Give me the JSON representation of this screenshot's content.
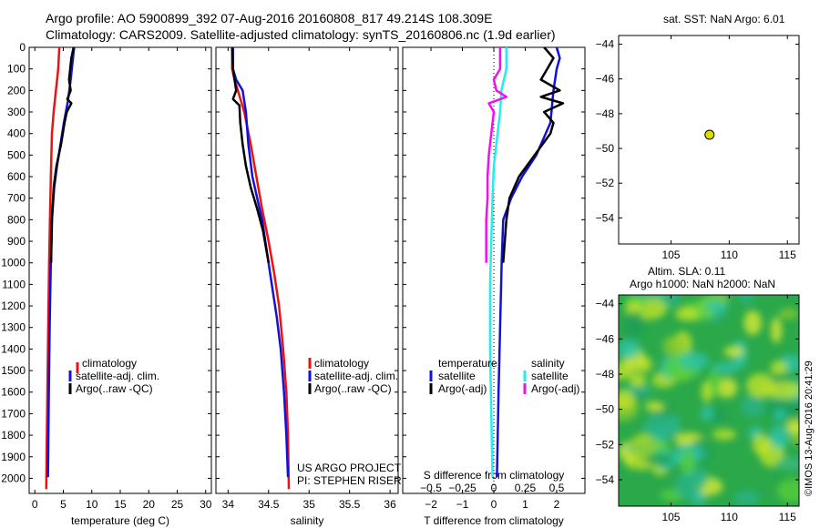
{
  "title_line1": "Argo profile: AO 5900899_392 07-Aug-2016 20160808_817 49.214S 108.309E",
  "title_line2": "Climatology: CARS2009. Satellite-adjusted climatology: synTS_20160806.nc (1.9d earlier)",
  "depth_ticks": [
    "0",
    "100",
    "200",
    "300",
    "400",
    "500",
    "600",
    "700",
    "800",
    "900",
    "1000",
    "1100",
    "1200",
    "1300",
    "1400",
    "1500",
    "1600",
    "1700",
    "1800",
    "1900",
    "2000"
  ],
  "project_text": [
    "US ARGO PROJECT",
    "PI: STEPHEN RISER"
  ],
  "legend_profiles": [
    "climatology",
    "satellite-adj. clim.",
    "Argo(..raw -QC)"
  ],
  "legend_diff": {
    "temperature_header": "temperature",
    "salinity_header": "salinity",
    "t_satellite": "satellite",
    "t_argo": "Argo(-adj)",
    "s_satellite": "satellite",
    "s_argo": "Argo(-adj)"
  },
  "sst_title": "sat. SST: NaN Argo: 6.01",
  "sla_title1": "Altim. SLA: 0.11",
  "sla_title2": "Argo h1000: NaN h2000: NaN",
  "credit": "©IMOS 13-Aug-2016 20:41:29",
  "colors": {
    "red": "#ee1111",
    "blue": "#1111dd",
    "black": "#000000",
    "cyan": "#22eeee",
    "magenta": "#ee11ee",
    "yellow": "#dddd00"
  },
  "chart_data": [
    {
      "type": "line",
      "xlabel": "temperature (deg C)",
      "xlim": [
        -1,
        31
      ],
      "ylim": [
        2070,
        0
      ],
      "xticks": [
        0,
        5,
        10,
        15,
        20,
        25,
        30
      ],
      "series": [
        {
          "name": "climatology",
          "color": "red",
          "points": [
            [
              4.3,
              0
            ],
            [
              4.1,
              100
            ],
            [
              3.7,
              200
            ],
            [
              3.3,
              300
            ],
            [
              3.0,
              400
            ],
            [
              2.9,
              500
            ],
            [
              2.8,
              600
            ],
            [
              2.65,
              800
            ],
            [
              2.5,
              1000
            ],
            [
              2.35,
              1300
            ],
            [
              2.2,
              1600
            ],
            [
              2.05,
              1900
            ],
            [
              2.0,
              2050
            ]
          ]
        },
        {
          "name": "satellite-adj. clim.",
          "color": "blue",
          "points": [
            [
              6.9,
              0
            ],
            [
              6.7,
              50
            ],
            [
              6.3,
              150
            ],
            [
              5.8,
              250
            ],
            [
              5.1,
              350
            ],
            [
              4.5,
              450
            ],
            [
              3.9,
              550
            ],
            [
              3.4,
              650
            ],
            [
              3.0,
              800
            ],
            [
              2.8,
              1000
            ],
            [
              2.6,
              1300
            ],
            [
              2.45,
              1600
            ],
            [
              2.35,
              1900
            ],
            [
              2.3,
              1995
            ]
          ]
        },
        {
          "name": "Argo(..raw -QC)",
          "color": "black",
          "points": [
            [
              6.8,
              0
            ],
            [
              6.4,
              50
            ],
            [
              6.0,
              150
            ],
            [
              6.3,
              200
            ],
            [
              5.7,
              240
            ],
            [
              6.4,
              260
            ],
            [
              5.6,
              300
            ],
            [
              5.2,
              350
            ],
            [
              4.6,
              450
            ],
            [
              3.8,
              550
            ],
            [
              3.3,
              650
            ],
            [
              3.0,
              800
            ],
            [
              2.85,
              1000
            ]
          ]
        }
      ]
    },
    {
      "type": "line",
      "xlabel": "salinity",
      "xlim": [
        33.85,
        36.1
      ],
      "ylim": [
        2070,
        0
      ],
      "xticks": [
        34,
        34.5,
        35,
        35.5,
        36
      ],
      "xticklabels": [
        "34",
        "34.5",
        "35",
        "35.5",
        "36"
      ],
      "series": [
        {
          "name": "climatology",
          "color": "red",
          "points": [
            [
              34.05,
              0
            ],
            [
              34.05,
              100
            ],
            [
              34.08,
              150
            ],
            [
              34.12,
              200
            ],
            [
              34.2,
              300
            ],
            [
              34.28,
              450
            ],
            [
              34.35,
              600
            ],
            [
              34.42,
              750
            ],
            [
              34.5,
              900
            ],
            [
              34.57,
              1050
            ],
            [
              34.63,
              1200
            ],
            [
              34.68,
              1400
            ],
            [
              34.72,
              1600
            ],
            [
              34.74,
              1800
            ],
            [
              34.75,
              2050
            ]
          ]
        },
        {
          "name": "satellite-adj. clim.",
          "color": "blue",
          "points": [
            [
              34.06,
              0
            ],
            [
              34.06,
              100
            ],
            [
              34.1,
              150
            ],
            [
              34.18,
              200
            ],
            [
              34.22,
              300
            ],
            [
              34.25,
              450
            ],
            [
              34.3,
              600
            ],
            [
              34.36,
              700
            ],
            [
              34.42,
              800
            ],
            [
              34.48,
              950
            ],
            [
              34.54,
              1100
            ],
            [
              34.6,
              1250
            ],
            [
              34.65,
              1400
            ],
            [
              34.69,
              1600
            ],
            [
              34.72,
              1800
            ],
            [
              34.74,
              1995
            ]
          ]
        },
        {
          "name": "Argo(..raw -QC)",
          "color": "black",
          "points": [
            [
              34.05,
              0
            ],
            [
              34.06,
              100
            ],
            [
              34.1,
              200
            ],
            [
              34.06,
              240
            ],
            [
              34.14,
              270
            ],
            [
              34.15,
              350
            ],
            [
              34.18,
              450
            ],
            [
              34.22,
              550
            ],
            [
              34.28,
              650
            ],
            [
              34.36,
              750
            ],
            [
              34.43,
              850
            ],
            [
              34.5,
              1000
            ]
          ]
        }
      ]
    },
    {
      "type": "line",
      "xlabel": "T difference from climatology",
      "x2label": "S difference from climatology",
      "xlim": [
        -2.9,
        2.9
      ],
      "x2lim": [
        -0.725,
        0.725
      ],
      "ylim": [
        2070,
        0
      ],
      "xticks": [
        -2,
        -1,
        0,
        1,
        2
      ],
      "xticklabels": [
        "−2",
        "−1",
        "0",
        "1",
        "2"
      ],
      "x2ticks": [
        -0.5,
        -0.25,
        0,
        0.25,
        0.5
      ],
      "x2ticklabels": [
        "−0.5",
        "−0.25",
        "0",
        "0.25",
        "0.5"
      ],
      "zero_line": true,
      "series": [
        {
          "name": "T satellite",
          "axis": "T",
          "color": "blue",
          "points": [
            [
              2.0,
              0
            ],
            [
              2.1,
              50
            ],
            [
              2.0,
              100
            ],
            [
              1.9,
              200
            ],
            [
              1.8,
              350
            ],
            [
              1.35,
              500
            ],
            [
              0.9,
              600
            ],
            [
              0.55,
              700
            ],
            [
              0.3,
              800
            ],
            [
              0.25,
              1000
            ],
            [
              0.2,
              1300
            ],
            [
              0.15,
              1600
            ],
            [
              0.1,
              1995
            ]
          ]
        },
        {
          "name": "T Argo(-adj)",
          "axis": "T",
          "color": "black",
          "points": [
            [
              1.6,
              0
            ],
            [
              1.9,
              50
            ],
            [
              1.7,
              100
            ],
            [
              1.5,
              150
            ],
            [
              2.1,
              200
            ],
            [
              1.5,
              230
            ],
            [
              2.2,
              260
            ],
            [
              1.6,
              300
            ],
            [
              1.9,
              350
            ],
            [
              1.8,
              400
            ],
            [
              1.3,
              500
            ],
            [
              0.8,
              600
            ],
            [
              0.5,
              700
            ],
            [
              0.4,
              800
            ],
            [
              0.3,
              1000
            ]
          ]
        },
        {
          "name": "S satellite",
          "axis": "S",
          "color": "cyan",
          "points": [
            [
              0.1,
              0
            ],
            [
              0.1,
              100
            ],
            [
              0.06,
              200
            ],
            [
              0.05,
              300
            ],
            [
              0.03,
              400
            ],
            [
              0.0,
              550
            ],
            [
              -0.01,
              700
            ],
            [
              -0.02,
              900
            ],
            [
              -0.03,
              1100
            ],
            [
              -0.03,
              1400
            ],
            [
              -0.02,
              1700
            ],
            [
              -0.01,
              1995
            ]
          ]
        },
        {
          "name": "S Argo(-adj)",
          "axis": "S",
          "color": "magenta",
          "points": [
            [
              0.05,
              0
            ],
            [
              0.05,
              100
            ],
            [
              0.0,
              150
            ],
            [
              0.02,
              200
            ],
            [
              0.1,
              230
            ],
            [
              -0.04,
              260
            ],
            [
              0.0,
              300
            ],
            [
              -0.02,
              400
            ],
            [
              -0.04,
              500
            ],
            [
              -0.05,
              600
            ],
            [
              -0.05,
              700
            ],
            [
              -0.06,
              800
            ],
            [
              -0.06,
              1000
            ]
          ]
        }
      ]
    },
    {
      "type": "scatter",
      "xlim": [
        100.5,
        116
      ],
      "ylim": [
        -55.5,
        -43.5
      ],
      "xticks": [
        105,
        110,
        115
      ],
      "yticks": [
        -44,
        -46,
        -48,
        -50,
        -52,
        -54
      ],
      "points": [
        [
          108.309,
          -49.214
        ]
      ]
    },
    {
      "type": "heatmap",
      "xlim": [
        100.5,
        116
      ],
      "ylim": [
        -55.5,
        -43.5
      ],
      "xticks": [
        105,
        110,
        115
      ],
      "yticks": [
        -44,
        -46,
        -48,
        -50,
        -52,
        -54
      ]
    }
  ]
}
